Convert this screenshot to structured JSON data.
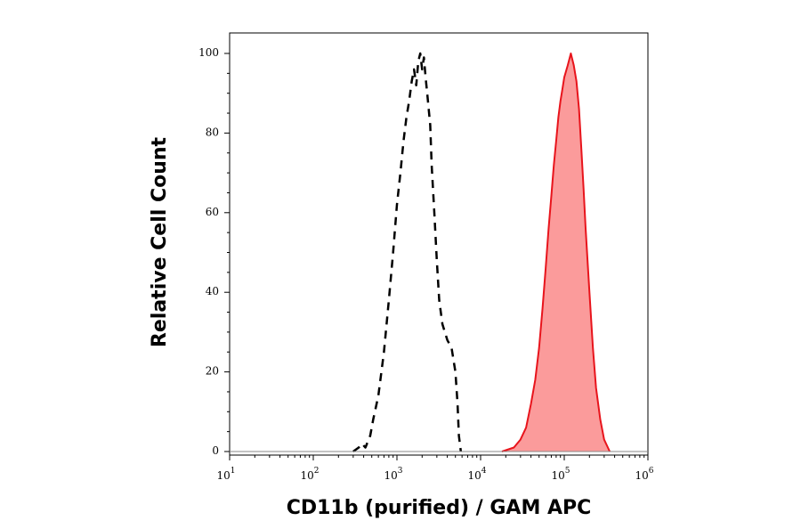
{
  "chart_data": {
    "type": "area",
    "xlabel": "CD11b (purified) / GAM APC",
    "ylabel": "Relative Cell Count",
    "xscale": "log",
    "xlim": [
      10,
      1000000
    ],
    "ylim": [
      0,
      100
    ],
    "x_ticks": [
      {
        "base": "10",
        "exp": "1",
        "value": 10
      },
      {
        "base": "10",
        "exp": "2",
        "value": 100
      },
      {
        "base": "10",
        "exp": "3",
        "value": 1000
      },
      {
        "base": "10",
        "exp": "4",
        "value": 10000
      },
      {
        "base": "10",
        "exp": "5",
        "value": 100000
      },
      {
        "base": "10",
        "exp": "6",
        "value": 1000000
      }
    ],
    "y_ticks": [
      "0",
      "20",
      "40",
      "60",
      "80",
      "100"
    ],
    "grid": false,
    "series": [
      {
        "style": "dashed",
        "color": "#000000",
        "fill": false,
        "points": [
          [
            300,
            0
          ],
          [
            350,
            1
          ],
          [
            380,
            2
          ],
          [
            420,
            1
          ],
          [
            480,
            4
          ],
          [
            520,
            8
          ],
          [
            600,
            14
          ],
          [
            700,
            25
          ],
          [
            800,
            38
          ],
          [
            900,
            50
          ],
          [
            1000,
            62
          ],
          [
            1100,
            70
          ],
          [
            1200,
            78
          ],
          [
            1300,
            84
          ],
          [
            1400,
            88
          ],
          [
            1500,
            93
          ],
          [
            1600,
            96
          ],
          [
            1700,
            92
          ],
          [
            1800,
            98
          ],
          [
            1900,
            100
          ],
          [
            2000,
            96
          ],
          [
            2100,
            99
          ],
          [
            2200,
            94
          ],
          [
            2300,
            90
          ],
          [
            2400,
            86
          ],
          [
            2500,
            82
          ],
          [
            2600,
            72
          ],
          [
            2800,
            60
          ],
          [
            3000,
            48
          ],
          [
            3200,
            38
          ],
          [
            3500,
            32
          ],
          [
            4000,
            28
          ],
          [
            4500,
            26
          ],
          [
            5000,
            20
          ],
          [
            5300,
            12
          ],
          [
            5500,
            4
          ],
          [
            5800,
            0
          ]
        ]
      },
      {
        "style": "solid",
        "color": "#e8141c",
        "fill": true,
        "fill_color": "#fb9b9b",
        "points": [
          [
            18000,
            0
          ],
          [
            25000,
            1
          ],
          [
            30000,
            3
          ],
          [
            35000,
            6
          ],
          [
            40000,
            12
          ],
          [
            45000,
            18
          ],
          [
            50000,
            26
          ],
          [
            55000,
            36
          ],
          [
            60000,
            46
          ],
          [
            65000,
            56
          ],
          [
            70000,
            64
          ],
          [
            75000,
            72
          ],
          [
            80000,
            78
          ],
          [
            85000,
            84
          ],
          [
            90000,
            88
          ],
          [
            95000,
            91
          ],
          [
            100000,
            94
          ],
          [
            110000,
            97
          ],
          [
            120000,
            100
          ],
          [
            130000,
            97
          ],
          [
            140000,
            93
          ],
          [
            150000,
            86
          ],
          [
            160000,
            76
          ],
          [
            170000,
            66
          ],
          [
            180000,
            56
          ],
          [
            200000,
            40
          ],
          [
            220000,
            26
          ],
          [
            240000,
            16
          ],
          [
            270000,
            8
          ],
          [
            300000,
            3
          ],
          [
            350000,
            0
          ]
        ]
      }
    ]
  }
}
